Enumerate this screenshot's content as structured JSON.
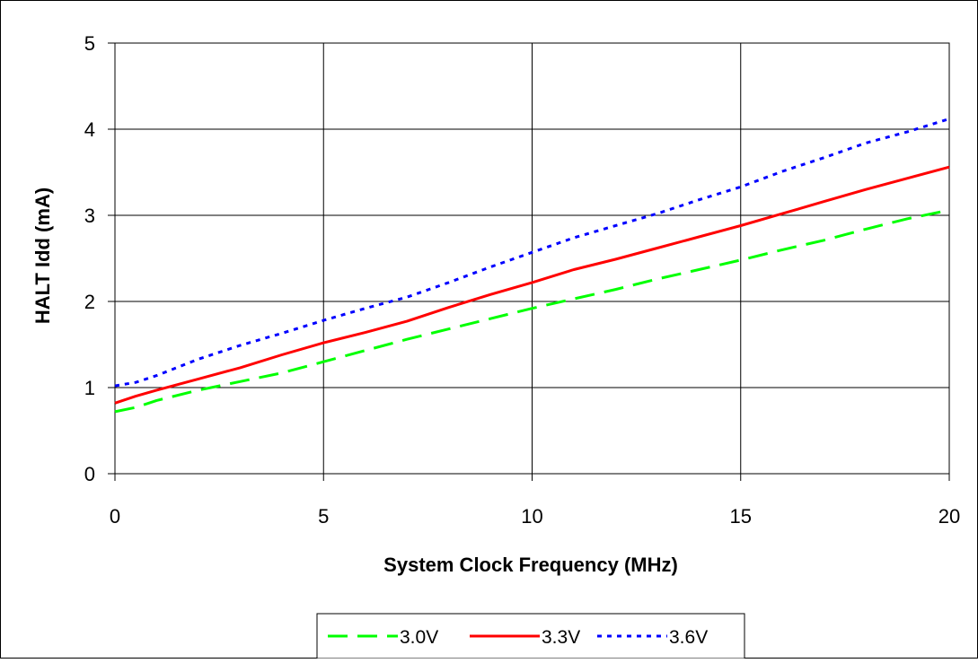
{
  "chart_data": {
    "type": "line",
    "title": "",
    "xlabel": "System Clock Frequency (MHz)",
    "ylabel": "HALT Idd (mA)",
    "xlim": [
      0,
      20
    ],
    "ylim": [
      0,
      5
    ],
    "xticks": [
      0,
      5,
      10,
      15,
      20
    ],
    "yticks": [
      0,
      1,
      2,
      3,
      4,
      5
    ],
    "grid": true,
    "legend_position": "bottom",
    "series": [
      {
        "name": "3.0V",
        "color": "#00ff00",
        "style": "dashed",
        "x": [
          0,
          0.5,
          1,
          2,
          3,
          4,
          5,
          6,
          7,
          8,
          9,
          10,
          11,
          12,
          13,
          14,
          15,
          16,
          17,
          18,
          19,
          20
        ],
        "values": [
          0.72,
          0.77,
          0.85,
          0.97,
          1.07,
          1.17,
          1.3,
          1.43,
          1.56,
          1.68,
          1.8,
          1.92,
          2.03,
          2.14,
          2.26,
          2.37,
          2.48,
          2.6,
          2.71,
          2.84,
          2.96,
          3.06
        ]
      },
      {
        "name": "3.3V",
        "color": "#ff0000",
        "style": "solid",
        "x": [
          0,
          0.5,
          1,
          2,
          3,
          4,
          5,
          6,
          7,
          8,
          9,
          10,
          11,
          12,
          13,
          14,
          15,
          16,
          17,
          18,
          19,
          20
        ],
        "values": [
          0.82,
          0.9,
          0.97,
          1.1,
          1.23,
          1.38,
          1.52,
          1.64,
          1.77,
          1.93,
          2.08,
          2.22,
          2.37,
          2.49,
          2.62,
          2.75,
          2.88,
          3.02,
          3.16,
          3.3,
          3.43,
          3.56
        ]
      },
      {
        "name": "3.6V",
        "color": "#0000ff",
        "style": "dotted",
        "x": [
          0,
          0.5,
          1,
          2,
          3,
          4,
          5,
          6,
          7,
          8,
          9,
          10,
          11,
          12,
          13,
          14,
          15,
          16,
          17,
          18,
          19,
          20
        ],
        "values": [
          1.02,
          1.06,
          1.14,
          1.33,
          1.49,
          1.63,
          1.78,
          1.92,
          2.05,
          2.22,
          2.4,
          2.57,
          2.74,
          2.88,
          3.02,
          3.18,
          3.33,
          3.51,
          3.67,
          3.84,
          3.97,
          4.12
        ]
      }
    ]
  }
}
